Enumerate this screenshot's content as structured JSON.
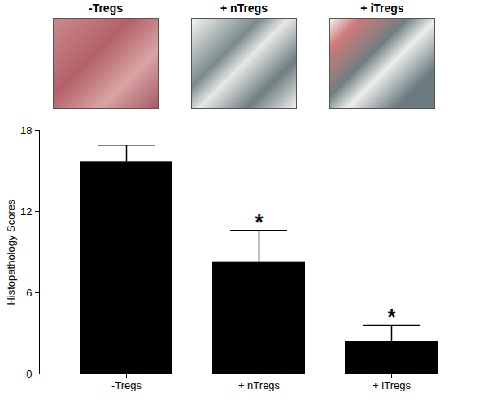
{
  "chart_data": {
    "type": "bar",
    "panel_titles": [
      "-Tregs",
      "+ nTregs",
      "+ iTregs"
    ],
    "categories": [
      "-Tregs",
      "+ nTregs",
      "+ iTregs"
    ],
    "values": [
      15.7,
      8.3,
      2.4
    ],
    "errors": [
      1.2,
      2.3,
      1.2
    ],
    "annotations": [
      null,
      "*",
      "*"
    ],
    "color": "#000000",
    "y_label": "Histopathology Scores",
    "ylim": [
      0,
      18
    ],
    "yticks": [
      0,
      6,
      12,
      18
    ],
    "grid": false
  }
}
